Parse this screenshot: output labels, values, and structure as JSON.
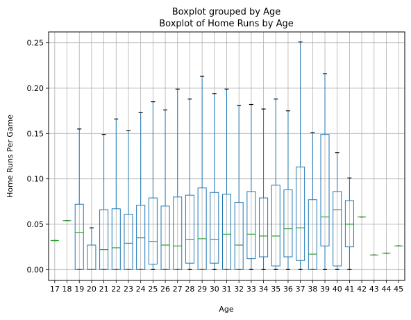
{
  "chart_data": {
    "type": "boxplot",
    "suptitle": "Boxplot grouped by Age",
    "title": "Boxplot of Home Runs by Age",
    "xlabel": "Age",
    "ylabel": "Home Runs Per Game",
    "ylim": [
      -0.012,
      0.262
    ],
    "yticks": [
      0.0,
      0.05,
      0.1,
      0.15,
      0.2,
      0.25
    ],
    "ytick_labels": [
      "0.00",
      "0.05",
      "0.10",
      "0.15",
      "0.20",
      "0.25"
    ],
    "grid": true,
    "categories": [
      "17",
      "18",
      "19",
      "20",
      "21",
      "22",
      "23",
      "24",
      "25",
      "26",
      "27",
      "28",
      "29",
      "30",
      "31",
      "32",
      "33",
      "34",
      "35",
      "36",
      "37",
      "38",
      "39",
      "40",
      "41",
      "42",
      "43",
      "44",
      "45"
    ],
    "boxes": [
      {
        "whislo": 0.032,
        "q1": 0.032,
        "med": 0.032,
        "q3": 0.032,
        "whishi": 0.032
      },
      {
        "whislo": 0.054,
        "q1": 0.054,
        "med": 0.054,
        "q3": 0.054,
        "whishi": 0.054
      },
      {
        "whislo": 0.0,
        "q1": 0.0,
        "med": 0.041,
        "q3": 0.072,
        "whishi": 0.155
      },
      {
        "whislo": 0.0,
        "q1": 0.0,
        "med": 0.0,
        "q3": 0.027,
        "whishi": 0.046
      },
      {
        "whislo": 0.0,
        "q1": 0.0,
        "med": 0.022,
        "q3": 0.066,
        "whishi": 0.149
      },
      {
        "whislo": 0.0,
        "q1": 0.0,
        "med": 0.024,
        "q3": 0.067,
        "whishi": 0.166
      },
      {
        "whislo": 0.0,
        "q1": 0.0,
        "med": 0.029,
        "q3": 0.061,
        "whishi": 0.153
      },
      {
        "whislo": 0.0,
        "q1": 0.0,
        "med": 0.035,
        "q3": 0.071,
        "whishi": 0.173
      },
      {
        "whislo": 0.0,
        "q1": 0.006,
        "med": 0.031,
        "q3": 0.079,
        "whishi": 0.185
      },
      {
        "whislo": 0.0,
        "q1": 0.0,
        "med": 0.027,
        "q3": 0.07,
        "whishi": 0.176
      },
      {
        "whislo": 0.0,
        "q1": 0.0,
        "med": 0.026,
        "q3": 0.08,
        "whishi": 0.199
      },
      {
        "whislo": 0.0,
        "q1": 0.007,
        "med": 0.033,
        "q3": 0.082,
        "whishi": 0.188
      },
      {
        "whislo": 0.0,
        "q1": 0.0,
        "med": 0.034,
        "q3": 0.09,
        "whishi": 0.213
      },
      {
        "whislo": 0.0,
        "q1": 0.007,
        "med": 0.033,
        "q3": 0.085,
        "whishi": 0.194
      },
      {
        "whislo": 0.0,
        "q1": 0.0,
        "med": 0.039,
        "q3": 0.083,
        "whishi": 0.199
      },
      {
        "whislo": 0.0,
        "q1": 0.0,
        "med": 0.027,
        "q3": 0.074,
        "whishi": 0.181
      },
      {
        "whislo": 0.0,
        "q1": 0.012,
        "med": 0.039,
        "q3": 0.086,
        "whishi": 0.182
      },
      {
        "whislo": 0.0,
        "q1": 0.014,
        "med": 0.037,
        "q3": 0.079,
        "whishi": 0.177
      },
      {
        "whislo": 0.0,
        "q1": 0.004,
        "med": 0.037,
        "q3": 0.093,
        "whishi": 0.188
      },
      {
        "whislo": 0.0,
        "q1": 0.014,
        "med": 0.045,
        "q3": 0.088,
        "whishi": 0.175
      },
      {
        "whislo": 0.0,
        "q1": 0.01,
        "med": 0.046,
        "q3": 0.113,
        "whishi": 0.251
      },
      {
        "whislo": 0.0,
        "q1": 0.0,
        "med": 0.017,
        "q3": 0.077,
        "whishi": 0.151
      },
      {
        "whislo": 0.0,
        "q1": 0.026,
        "med": 0.058,
        "q3": 0.149,
        "whishi": 0.216
      },
      {
        "whislo": 0.0,
        "q1": 0.004,
        "med": 0.066,
        "q3": 0.086,
        "whishi": 0.129
      },
      {
        "whislo": 0.0,
        "q1": 0.025,
        "med": 0.05,
        "q3": 0.076,
        "whishi": 0.101
      },
      {
        "whislo": 0.058,
        "q1": 0.058,
        "med": 0.058,
        "q3": 0.058,
        "whishi": 0.058
      },
      {
        "whislo": 0.016,
        "q1": 0.016,
        "med": 0.016,
        "q3": 0.016,
        "whishi": 0.016
      },
      {
        "whislo": 0.018,
        "q1": 0.018,
        "med": 0.018,
        "q3": 0.018,
        "whishi": 0.018
      },
      {
        "whislo": 0.026,
        "q1": 0.026,
        "med": 0.026,
        "q3": 0.026,
        "whishi": 0.026
      }
    ],
    "colors": {
      "box": "#1f77b4",
      "median": "#2ca02c",
      "whisker": "#1f77b4",
      "cap": "#000000",
      "grid": "#b0b0b0",
      "axes": "#000000"
    }
  }
}
